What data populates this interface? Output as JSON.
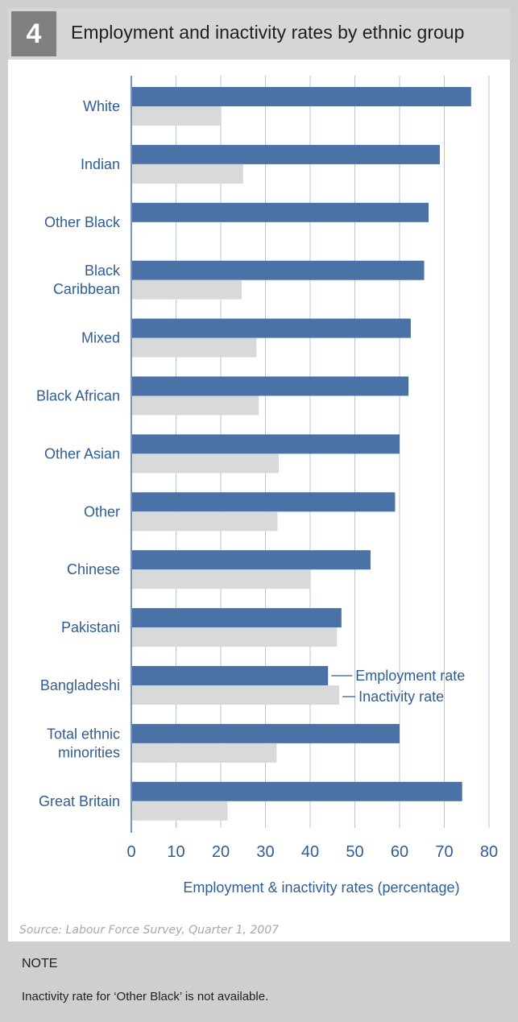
{
  "header": {
    "number": "4",
    "title": "Employment and inactivity rates by ethnic group"
  },
  "chart_data": {
    "type": "bar",
    "orientation": "horizontal",
    "title": "Employment and inactivity rates by ethnic group",
    "xlabel": "Employment & inactivity rates (percentage)",
    "ylabel": "",
    "xlim": [
      0,
      80
    ],
    "xticks": [
      "0",
      "10",
      "20",
      "30",
      "40",
      "50",
      "60",
      "70",
      "80"
    ],
    "grid": true,
    "legend_placement": "inside, right of the Bangladeshi bars",
    "categories": [
      [
        "White"
      ],
      [
        "Indian"
      ],
      [
        "Other Black"
      ],
      [
        "Black",
        "Caribbean"
      ],
      [
        "Mixed"
      ],
      [
        "Black African"
      ],
      [
        "Other Asian"
      ],
      [
        "Other"
      ],
      [
        "Chinese"
      ],
      [
        "Pakistani"
      ],
      [
        "Bangladeshi"
      ],
      [
        "Total ethnic",
        "minorities"
      ],
      [
        "Great Britain"
      ]
    ],
    "series": [
      {
        "name": "Employment rate",
        "color": "#4a72a6",
        "values": [
          76,
          69,
          66.5,
          65.5,
          62.5,
          62,
          60,
          59,
          53.5,
          47,
          44,
          60,
          74
        ]
      },
      {
        "name": "Inactivity rate",
        "color": "#d9d9d9",
        "values": [
          20,
          25,
          null,
          24.7,
          28,
          28.5,
          33,
          32.7,
          40,
          46,
          46.5,
          32.5,
          21.5
        ]
      }
    ]
  },
  "source": "Source: Labour Force Survey, Quarter 1, 2007",
  "note": {
    "heading": "NOTE",
    "text": "Inactivity rate for ‘Other Black’ is not available."
  }
}
